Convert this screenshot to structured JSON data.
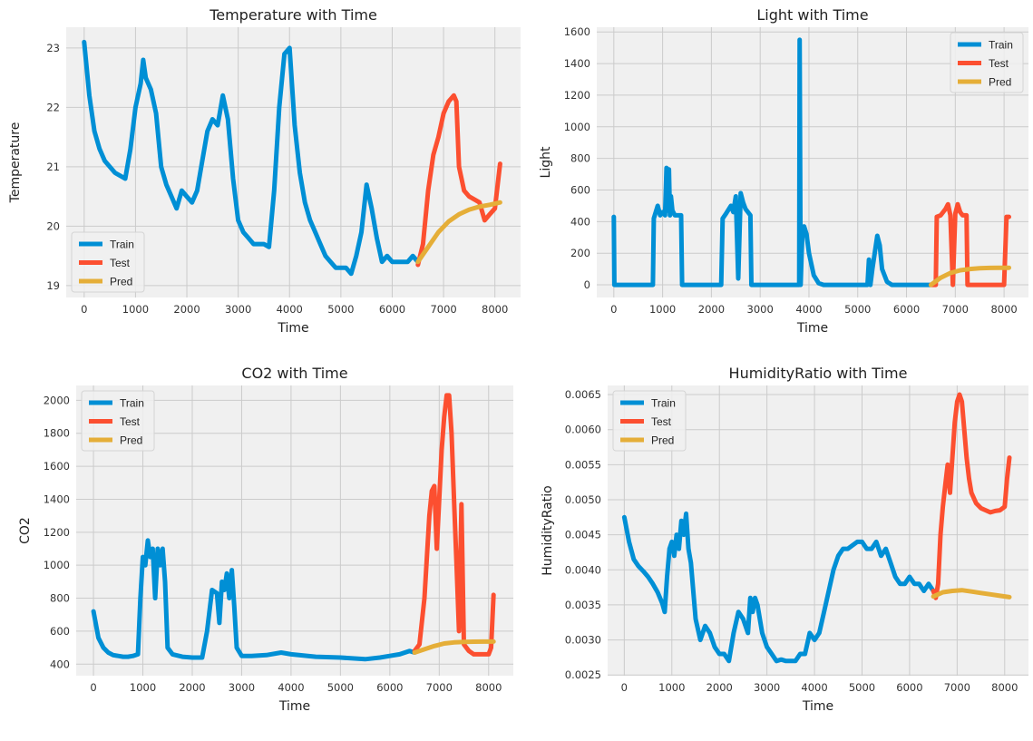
{
  "colors": {
    "train": "#008fd5",
    "test": "#fc4f30",
    "pred": "#e5ae38",
    "axes_bg": "#f0f0f0",
    "grid": "#cbcbcb"
  },
  "chart_data": [
    {
      "id": "temperature",
      "type": "line",
      "title": "Temperature with Time",
      "xlabel": "Time",
      "ylabel": "Temperature",
      "xlim": [
        -350,
        8500
      ],
      "ylim": [
        18.8,
        23.35
      ],
      "xticks": [
        0,
        1000,
        2000,
        3000,
        4000,
        5000,
        6000,
        7000,
        8000
      ],
      "yticks": [
        19,
        20,
        21,
        22,
        23
      ],
      "legend": "bottom-left",
      "grid": true,
      "series": [
        {
          "name": "Train",
          "color": "#008fd5",
          "x": [
            0,
            100,
            200,
            300,
            400,
            500,
            600,
            700,
            800,
            900,
            1000,
            1100,
            1150,
            1200,
            1300,
            1400,
            1500,
            1600,
            1700,
            1800,
            1900,
            2000,
            2100,
            2200,
            2300,
            2400,
            2500,
            2600,
            2700,
            2800,
            2900,
            3000,
            3100,
            3200,
            3300,
            3400,
            3500,
            3600,
            3700,
            3800,
            3900,
            4000,
            4100,
            4200,
            4300,
            4400,
            4500,
            4600,
            4700,
            4800,
            4900,
            5000,
            5100,
            5200,
            5300,
            5400,
            5500,
            5600,
            5700,
            5800,
            5900,
            6000,
            6100,
            6200,
            6300,
            6400,
            6500
          ],
          "values": [
            23.1,
            22.2,
            21.6,
            21.3,
            21.1,
            21.0,
            20.9,
            20.85,
            20.8,
            21.3,
            22.0,
            22.4,
            22.8,
            22.5,
            22.3,
            21.9,
            21.0,
            20.7,
            20.5,
            20.3,
            20.6,
            20.5,
            20.4,
            20.6,
            21.1,
            21.6,
            21.8,
            21.7,
            22.2,
            21.8,
            20.8,
            20.1,
            19.9,
            19.8,
            19.7,
            19.7,
            19.7,
            19.65,
            20.6,
            22.0,
            22.9,
            23.0,
            21.7,
            20.9,
            20.4,
            20.1,
            19.9,
            19.7,
            19.5,
            19.4,
            19.3,
            19.3,
            19.3,
            19.2,
            19.5,
            19.9,
            20.7,
            20.3,
            19.8,
            19.4,
            19.5,
            19.4,
            19.4,
            19.4,
            19.4,
            19.5,
            19.4
          ]
        },
        {
          "name": "Test",
          "color": "#fc4f30",
          "x": [
            6500,
            6600,
            6700,
            6800,
            6900,
            7000,
            7100,
            7200,
            7250,
            7300,
            7400,
            7500,
            7600,
            7700,
            7800,
            7900,
            8000,
            8100
          ],
          "values": [
            19.35,
            19.7,
            20.6,
            21.2,
            21.5,
            21.9,
            22.1,
            22.2,
            22.1,
            21.0,
            20.6,
            20.5,
            20.45,
            20.4,
            20.1,
            20.2,
            20.3,
            21.05
          ]
        },
        {
          "name": "Pred",
          "color": "#e5ae38",
          "x": [
            6500,
            6700,
            6900,
            7100,
            7300,
            7500,
            7700,
            7900,
            8100
          ],
          "values": [
            19.4,
            19.65,
            19.9,
            20.08,
            20.2,
            20.28,
            20.33,
            20.36,
            20.4
          ]
        }
      ]
    },
    {
      "id": "light",
      "type": "line",
      "title": "Light with Time",
      "xlabel": "Time",
      "ylabel": "Light",
      "xlim": [
        -350,
        8500
      ],
      "ylim": [
        -80,
        1630
      ],
      "xticks": [
        0,
        1000,
        2000,
        3000,
        4000,
        5000,
        6000,
        7000,
        8000
      ],
      "yticks": [
        0,
        200,
        400,
        600,
        800,
        1000,
        1200,
        1400,
        1600
      ],
      "legend": "top-right",
      "grid": true,
      "series": [
        {
          "name": "Train",
          "color": "#008fd5",
          "x": [
            0,
            10,
            30,
            800,
            820,
            900,
            950,
            1000,
            1050,
            1080,
            1100,
            1130,
            1150,
            1170,
            1200,
            1250,
            1300,
            1380,
            1400,
            1420,
            2200,
            2230,
            2300,
            2400,
            2450,
            2500,
            2550,
            2600,
            2650,
            2700,
            2800,
            2820,
            2840,
            3800,
            3810,
            3830,
            3850,
            3870,
            3900,
            3950,
            4000,
            4100,
            4200,
            4300,
            4400,
            5200,
            5230,
            5260,
            5300,
            5400,
            5450,
            5500,
            5600,
            5700,
            5800,
            6500
          ],
          "values": [
            430,
            0,
            0,
            0,
            420,
            500,
            440,
            460,
            440,
            740,
            470,
            730,
            440,
            560,
            470,
            440,
            440,
            440,
            0,
            0,
            0,
            420,
            450,
            500,
            460,
            560,
            40,
            580,
            520,
            480,
            440,
            0,
            0,
            0,
            1550,
            0,
            200,
            350,
            370,
            320,
            200,
            60,
            10,
            0,
            0,
            0,
            160,
            0,
            100,
            310,
            250,
            100,
            20,
            0,
            0,
            0
          ]
        },
        {
          "name": "Test",
          "color": "#fc4f30",
          "x": [
            6500,
            6600,
            6620,
            6700,
            6800,
            6850,
            6900,
            6950,
            7000,
            7050,
            7100,
            7150,
            7200,
            7230,
            7250,
            7600,
            7700,
            8000,
            8050,
            8100
          ],
          "values": [
            0,
            0,
            430,
            440,
            480,
            510,
            440,
            0,
            450,
            510,
            460,
            440,
            440,
            440,
            0,
            0,
            0,
            0,
            430,
            430
          ]
        },
        {
          "name": "Pred",
          "color": "#e5ae38",
          "x": [
            6500,
            6700,
            6900,
            7100,
            7300,
            7500,
            7700,
            7900,
            8100
          ],
          "values": [
            0,
            45,
            75,
            92,
            100,
            105,
            107,
            108,
            108
          ]
        }
      ]
    },
    {
      "id": "co2",
      "type": "line",
      "title": "CO2 with Time",
      "xlabel": "Time",
      "ylabel": "CO2",
      "xlim": [
        -350,
        8500
      ],
      "ylim": [
        330,
        2090
      ],
      "xticks": [
        0,
        1000,
        2000,
        3000,
        4000,
        5000,
        6000,
        7000,
        8000
      ],
      "yticks": [
        400,
        600,
        800,
        1000,
        1200,
        1400,
        1600,
        1800,
        2000
      ],
      "legend": "top-left",
      "grid": true,
      "series": [
        {
          "name": "Train",
          "color": "#008fd5",
          "x": [
            0,
            100,
            200,
            300,
            400,
            500,
            600,
            700,
            800,
            900,
            950,
            1000,
            1050,
            1100,
            1150,
            1200,
            1250,
            1300,
            1350,
            1400,
            1450,
            1500,
            1600,
            1800,
            2000,
            2200,
            2300,
            2400,
            2500,
            2550,
            2600,
            2650,
            2700,
            2750,
            2800,
            2850,
            2900,
            3000,
            3200,
            3500,
            3800,
            4000,
            4500,
            5000,
            5500,
            5800,
            6000,
            6200,
            6400,
            6500
          ],
          "values": [
            720,
            560,
            500,
            470,
            455,
            450,
            445,
            445,
            450,
            460,
            800,
            1050,
            1000,
            1150,
            1050,
            1100,
            800,
            1100,
            1000,
            1100,
            900,
            500,
            460,
            445,
            440,
            440,
            600,
            850,
            830,
            650,
            900,
            850,
            950,
            800,
            970,
            750,
            500,
            450,
            450,
            455,
            470,
            460,
            445,
            440,
            430,
            440,
            450,
            460,
            480,
            470
          ]
        },
        {
          "name": "Test",
          "color": "#fc4f30",
          "x": [
            6500,
            6600,
            6700,
            6800,
            6850,
            6900,
            6950,
            7000,
            7050,
            7100,
            7150,
            7200,
            7250,
            7300,
            7350,
            7400,
            7450,
            7500,
            7600,
            7700,
            7800,
            7900,
            8000,
            8050,
            8100
          ],
          "values": [
            480,
            520,
            800,
            1300,
            1450,
            1480,
            1100,
            1400,
            1700,
            1900,
            2030,
            2030,
            1800,
            1400,
            1000,
            600,
            1370,
            520,
            480,
            460,
            460,
            460,
            460,
            500,
            820
          ]
        },
        {
          "name": "Pred",
          "color": "#e5ae38",
          "x": [
            6500,
            6700,
            6900,
            7100,
            7300,
            7500,
            7700,
            7900,
            8100
          ],
          "values": [
            470,
            490,
            510,
            525,
            532,
            535,
            536,
            537,
            537
          ]
        }
      ]
    },
    {
      "id": "humidityratio",
      "type": "line",
      "title": "HumidityRatio with Time",
      "xlabel": "Time",
      "ylabel": "HumidityRatio",
      "xlim": [
        -350,
        8500
      ],
      "ylim": [
        0.00249,
        0.00663
      ],
      "xticks": [
        0,
        1000,
        2000,
        3000,
        4000,
        5000,
        6000,
        7000,
        8000
      ],
      "yticks": [
        0.0025,
        0.003,
        0.0035,
        0.004,
        0.0045,
        0.005,
        0.0055,
        0.006,
        0.0065
      ],
      "legend": "top-left",
      "grid": true,
      "series": [
        {
          "name": "Train",
          "color": "#008fd5",
          "x": [
            0,
            100,
            200,
            300,
            400,
            500,
            600,
            700,
            800,
            850,
            900,
            950,
            1000,
            1050,
            1100,
            1150,
            1200,
            1250,
            1300,
            1350,
            1400,
            1500,
            1600,
            1700,
            1800,
            1900,
            2000,
            2100,
            2200,
            2300,
            2400,
            2500,
            2600,
            2650,
            2700,
            2750,
            2800,
            2900,
            3000,
            3100,
            3200,
            3300,
            3400,
            3600,
            3700,
            3800,
            3900,
            4000,
            4100,
            4200,
            4300,
            4400,
            4500,
            4600,
            4700,
            4800,
            4900,
            5000,
            5100,
            5200,
            5300,
            5400,
            5500,
            5600,
            5700,
            5800,
            5900,
            6000,
            6100,
            6200,
            6300,
            6400,
            6500
          ],
          "values": [
            0.00475,
            0.0044,
            0.00415,
            0.00405,
            0.00398,
            0.0039,
            0.0038,
            0.00368,
            0.00352,
            0.0034,
            0.0039,
            0.0043,
            0.0044,
            0.0042,
            0.0045,
            0.0043,
            0.0047,
            0.0045,
            0.0048,
            0.0043,
            0.0041,
            0.0033,
            0.003,
            0.0032,
            0.0031,
            0.0029,
            0.0028,
            0.0028,
            0.0027,
            0.0031,
            0.0034,
            0.0033,
            0.0031,
            0.0036,
            0.0034,
            0.0036,
            0.0035,
            0.0031,
            0.0029,
            0.0028,
            0.0027,
            0.00272,
            0.0027,
            0.0027,
            0.0028,
            0.0028,
            0.0031,
            0.003,
            0.0031,
            0.0034,
            0.0037,
            0.004,
            0.0042,
            0.0043,
            0.0043,
            0.00435,
            0.0044,
            0.0044,
            0.0043,
            0.0043,
            0.0044,
            0.0042,
            0.0043,
            0.0041,
            0.0039,
            0.0038,
            0.0038,
            0.0039,
            0.0038,
            0.0038,
            0.0037,
            0.0038,
            0.0037
          ]
        },
        {
          "name": "Test",
          "color": "#fc4f30",
          "x": [
            6500,
            6550,
            6600,
            6650,
            6700,
            6750,
            6800,
            6850,
            6900,
            6950,
            7000,
            7050,
            7100,
            7150,
            7200,
            7250,
            7300,
            7400,
            7500,
            7600,
            7700,
            7800,
            7900,
            8000,
            8050,
            8100
          ],
          "values": [
            0.0037,
            0.0036,
            0.0038,
            0.0045,
            0.0049,
            0.0052,
            0.0055,
            0.0051,
            0.0056,
            0.0061,
            0.0064,
            0.0065,
            0.0064,
            0.006,
            0.0056,
            0.0053,
            0.0051,
            0.00495,
            0.00488,
            0.00485,
            0.00482,
            0.00484,
            0.00485,
            0.0049,
            0.0053,
            0.0056
          ]
        },
        {
          "name": "Pred",
          "color": "#e5ae38",
          "x": [
            6500,
            6700,
            6900,
            7100,
            7300,
            7500,
            7700,
            7900,
            8100
          ],
          "values": [
            0.00362,
            0.00368,
            0.0037,
            0.00371,
            0.00369,
            0.00367,
            0.00365,
            0.00363,
            0.00361
          ]
        }
      ]
    }
  ]
}
